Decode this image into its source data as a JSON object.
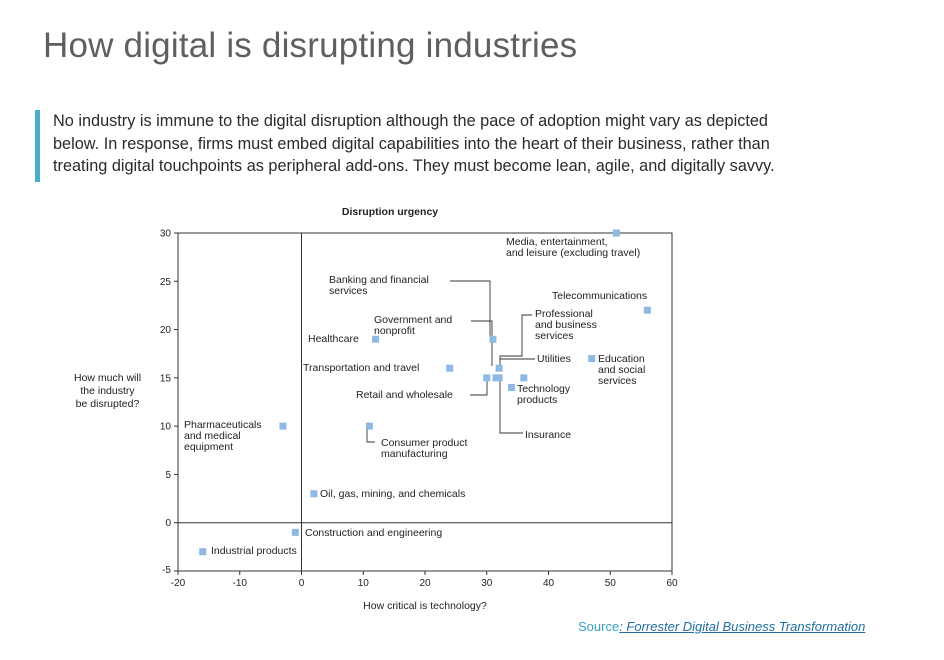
{
  "page": {
    "title": "How digital is disrupting industries",
    "intro_lines": [
      "No industry is immune to the digital disruption although the pace of adoption might vary  as depicted",
      "below. In response, firms must embed digital capabilities into the heart of their business, rather than",
      "treating digital touchpoints as peripheral add-ons. They must become lean, agile, and digitally savvy."
    ],
    "source_label": "Source",
    "source_link": ": Forrester Digital Business Transformation"
  },
  "colors": {
    "accent_bar": "#49aecb",
    "marker": "#8fb9e3",
    "title": "#5f5f5f",
    "source": "#3aa0c8"
  },
  "chart_data": {
    "type": "scatter",
    "title": "Disruption urgency",
    "xlabel": "How critical is technology?",
    "ylabel_lines": [
      "How much will",
      "the industry",
      "be disrupted?"
    ],
    "xlim": [
      -20,
      60
    ],
    "ylim": [
      -5,
      30
    ],
    "xticks": [
      -20,
      -10,
      0,
      10,
      20,
      30,
      40,
      50,
      60
    ],
    "yticks": [
      -5,
      0,
      5,
      10,
      15,
      20,
      25,
      30
    ],
    "tick_labels_x": [
      "-20",
      "-10",
      "0",
      "10",
      "20",
      "30",
      "40",
      "50",
      "60"
    ],
    "tick_labels_y": [
      "-5",
      "0",
      "5",
      "10",
      "15",
      "20",
      "25",
      "30"
    ],
    "reference_lines": {
      "x": 0,
      "y": 0
    },
    "grid": false,
    "points": [
      {
        "label_lines": [
          "Media, entertainment,",
          "and leisure (excluding travel)"
        ],
        "x": 51,
        "y": 30
      },
      {
        "label_lines": [
          "Telecommunications"
        ],
        "x": 56,
        "y": 22
      },
      {
        "label_lines": [
          "Banking and financial",
          "services"
        ],
        "x": 31,
        "y": 19
      },
      {
        "label_lines": [
          "Government and",
          "nonprofit"
        ],
        "x": 32,
        "y": 16
      },
      {
        "label_lines": [
          "Healthcare"
        ],
        "x": 12,
        "y": 19
      },
      {
        "label_lines": [
          "Professional",
          "and business",
          "services"
        ],
        "x": 36,
        "y": 15
      },
      {
        "label_lines": [
          "Utilities"
        ],
        "x": 32,
        "y": 15
      },
      {
        "label_lines": [
          "Education",
          "and social",
          "services"
        ],
        "x": 47,
        "y": 17
      },
      {
        "label_lines": [
          "Transportation and travel"
        ],
        "x": 24,
        "y": 16
      },
      {
        "label_lines": [
          "Retail and wholesale"
        ],
        "x": 30,
        "y": 15
      },
      {
        "label_lines": [
          "Technology",
          "products"
        ],
        "x": 34,
        "y": 14
      },
      {
        "label_lines": [
          "Insurance"
        ],
        "x": 31.5,
        "y": 15
      },
      {
        "label_lines": [
          "Pharmaceuticals",
          "and medical",
          "equipment"
        ],
        "x": -3,
        "y": 10
      },
      {
        "label_lines": [
          "Consumer product",
          "manufacturing"
        ],
        "x": 11,
        "y": 10
      },
      {
        "label_lines": [
          "Oil, gas, mining, and chemicals"
        ],
        "x": 2,
        "y": 3
      },
      {
        "label_lines": [
          "Construction and engineering"
        ],
        "x": -1,
        "y": -1
      },
      {
        "label_lines": [
          "Industrial products"
        ],
        "x": -16,
        "y": -3
      }
    ]
  }
}
